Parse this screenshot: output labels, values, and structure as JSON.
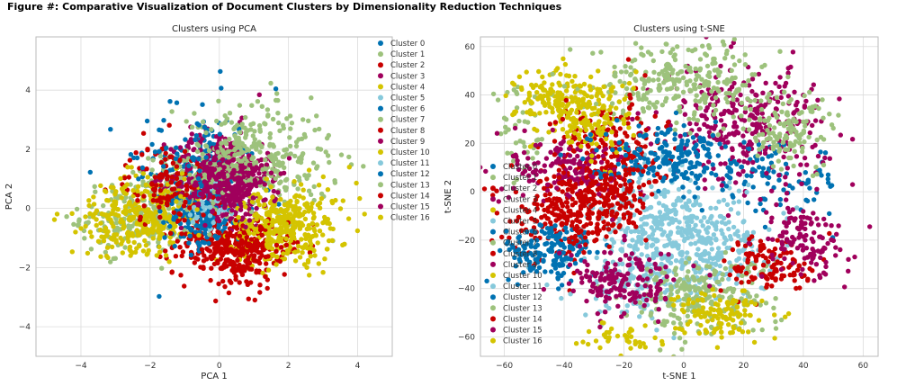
{
  "figure": {
    "title": "Figure #: Comparative Visualization of Document Clusters by Dimensionality Reduction Techniques"
  },
  "colors": {
    "Cluster 0": "#0072b2",
    "Cluster 1": "#9dc27c",
    "Cluster 2": "#c80000",
    "Cluster 3": "#a0005c",
    "Cluster 4": "#d4c400",
    "Cluster 5": "#86c9db",
    "Cluster 6": "#0072b2",
    "Cluster 7": "#9dc27c",
    "Cluster 8": "#c80000",
    "Cluster 9": "#a0005c",
    "Cluster 10": "#d4c400",
    "Cluster 11": "#86c9db",
    "Cluster 12": "#0072b2",
    "Cluster 13": "#9dc27c",
    "Cluster 14": "#c80000",
    "Cluster 15": "#a0005c",
    "Cluster 16": "#d4c400"
  },
  "chart_data": [
    {
      "type": "scatter",
      "title": "Clusters using PCA",
      "xlabel": "PCA 1",
      "ylabel": "PCA 2",
      "xlim": [
        -5.3,
        5.0
      ],
      "ylim": [
        -5.0,
        5.8
      ],
      "xticks": [
        -4,
        -2,
        0,
        2,
        4
      ],
      "yticks": [
        -4,
        -2,
        0,
        2,
        4
      ],
      "grid": true,
      "legend": "top-right",
      "series": [
        {
          "name": "Cluster 0",
          "centers": [
            [
              -0.5,
              0.8,
              0.8,
              0.9,
              260
            ]
          ]
        },
        {
          "name": "Cluster 1",
          "centers": [
            [
              -2.4,
              -0.3,
              0.8,
              0.6,
              180
            ],
            [
              -1.3,
              0.8,
              0.6,
              0.6,
              80
            ]
          ]
        },
        {
          "name": "Cluster 2",
          "centers": [
            [
              0.3,
              -1.2,
              0.8,
              0.5,
              260
            ]
          ]
        },
        {
          "name": "Cluster 3",
          "centers": [
            [
              0.0,
              1.1,
              0.7,
              0.8,
              320
            ]
          ]
        },
        {
          "name": "Cluster 4",
          "centers": [
            [
              -2.0,
              -0.2,
              0.7,
              0.6,
              220
            ]
          ]
        },
        {
          "name": "Cluster 5",
          "centers": [
            [
              -0.2,
              -0.1,
              0.4,
              0.4,
              20
            ]
          ]
        },
        {
          "name": "Cluster 6",
          "centers": [
            [
              -0.6,
              -0.4,
              0.5,
              0.5,
              110
            ]
          ]
        },
        {
          "name": "Cluster 7",
          "centers": [
            [
              1.0,
              1.5,
              1.1,
              0.9,
              260
            ]
          ]
        },
        {
          "name": "Cluster 8",
          "centers": [
            [
              -1.5,
              0.8,
              0.6,
              0.7,
              120
            ]
          ]
        },
        {
          "name": "Cluster 9",
          "centers": [
            [
              0.3,
              1.0,
              0.6,
              0.6,
              160
            ]
          ]
        },
        {
          "name": "Cluster 10",
          "centers": [
            [
              1.8,
              -0.7,
              0.7,
              0.6,
              280
            ]
          ]
        },
        {
          "name": "Cluster 11",
          "centers": [
            [
              -0.3,
              0.0,
              0.3,
              0.3,
              15
            ]
          ]
        },
        {
          "name": "Cluster 12",
          "centers": [
            [
              -0.9,
              2.3,
              0.7,
              0.8,
              50
            ]
          ]
        },
        {
          "name": "Cluster 13",
          "centers": [
            [
              0.8,
              2.0,
              1.0,
              0.8,
              110
            ]
          ]
        },
        {
          "name": "Cluster 14",
          "centers": [
            [
              0.8,
              -1.6,
              0.6,
              0.6,
              130
            ]
          ]
        },
        {
          "name": "Cluster 15",
          "centers": [
            [
              0.5,
              0.6,
              0.5,
              0.5,
              100
            ]
          ]
        },
        {
          "name": "Cluster 16",
          "centers": [
            [
              -2.8,
              -0.4,
              0.9,
              0.7,
              90
            ],
            [
              2.3,
              -0.3,
              0.8,
              0.6,
              90
            ]
          ]
        }
      ]
    },
    {
      "type": "scatter",
      "title": "Clusters using t-SNE",
      "xlabel": "t-SNE 1",
      "ylabel": "t-SNE 2",
      "xlim": [
        -68,
        65
      ],
      "ylim": [
        -68,
        64
      ],
      "xticks": [
        -60,
        -40,
        -20,
        0,
        20,
        40,
        60
      ],
      "yticks": [
        -60,
        -40,
        -20,
        0,
        20,
        40,
        60
      ],
      "grid": true,
      "legend": "center-left",
      "series": [
        {
          "name": "Cluster 0",
          "centers": [
            [
              30,
              5,
              12,
              7,
              90
            ]
          ]
        },
        {
          "name": "Cluster 1",
          "centers": [
            [
              -55,
              22,
              5,
              10,
              40
            ]
          ]
        },
        {
          "name": "Cluster 2",
          "centers": [
            [
              -40,
              -10,
              9,
              9,
              160
            ]
          ]
        },
        {
          "name": "Cluster 3",
          "centers": [
            [
              20,
              28,
              14,
              12,
              320
            ]
          ]
        },
        {
          "name": "Cluster 4",
          "centers": [
            [
              -40,
              38,
              8,
              7,
              160
            ]
          ]
        },
        {
          "name": "Cluster 5",
          "centers": [
            [
              -5,
              -15,
              13,
              11,
              300
            ],
            [
              -15,
              -40,
              10,
              6,
              120
            ]
          ]
        },
        {
          "name": "Cluster 6",
          "centers": [
            [
              -45,
              -25,
              8,
              6,
              160
            ]
          ]
        },
        {
          "name": "Cluster 7",
          "centers": [
            [
              0,
              46,
              15,
              8,
              280
            ]
          ]
        },
        {
          "name": "Cluster 8",
          "centers": [
            [
              -25,
              15,
              9,
              12,
              220
            ]
          ]
        },
        {
          "name": "Cluster 9",
          "centers": [
            [
              -40,
              10,
              9,
              7,
              140
            ]
          ]
        },
        {
          "name": "Cluster 10",
          "centers": [
            [
              -30,
              30,
              7,
              9,
              130
            ]
          ]
        },
        {
          "name": "Cluster 11",
          "centers": [
            [
              5,
              -25,
              12,
              10,
              200
            ]
          ]
        },
        {
          "name": "Cluster 12",
          "centers": [
            [
              -5,
              15,
              13,
              6,
              200
            ]
          ]
        },
        {
          "name": "Cluster 13",
          "centers": [
            [
              5,
              -43,
              12,
              8,
              240
            ],
            [
              35,
              25,
              8,
              8,
              120
            ]
          ]
        },
        {
          "name": "Cluster 14",
          "centers": [
            [
              -30,
              -5,
              9,
              8,
              200
            ],
            [
              30,
              -30,
              8,
              6,
              120
            ]
          ]
        },
        {
          "name": "Cluster 15",
          "centers": [
            [
              -20,
              -38,
              9,
              7,
              160
            ],
            [
              40,
              -20,
              7,
              8,
              120
            ]
          ]
        },
        {
          "name": "Cluster 16",
          "centers": [
            [
              12,
              -50,
              7,
              5,
              120
            ],
            [
              -20,
              -60,
              6,
              3,
              40
            ]
          ]
        }
      ]
    }
  ]
}
